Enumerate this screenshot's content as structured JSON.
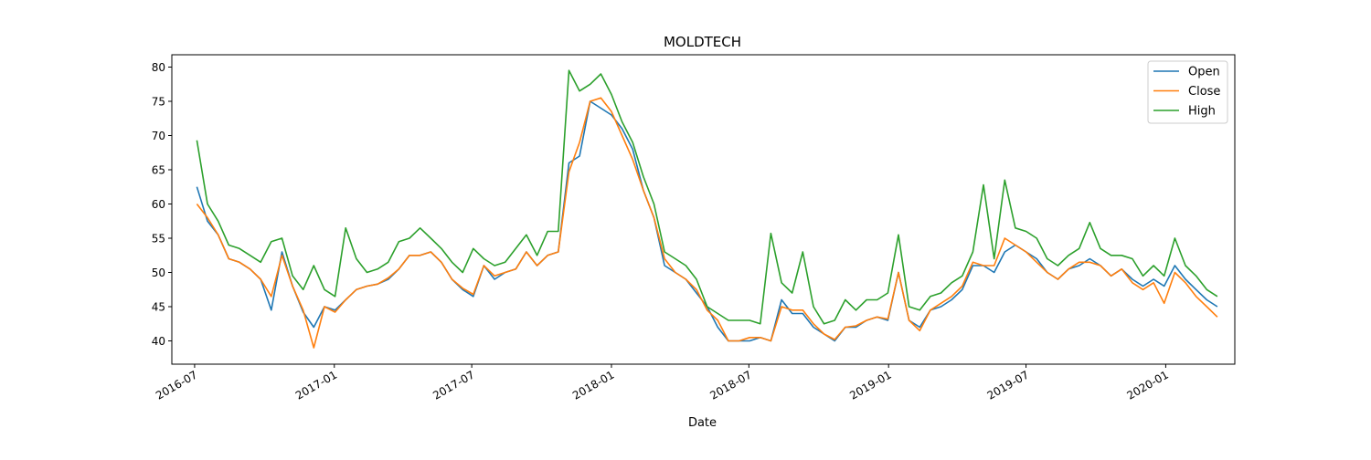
{
  "chart_data": {
    "type": "line",
    "title": "MOLDTECH",
    "xlabel": "Date",
    "ylabel": "",
    "xlim": [
      "2016-06-01",
      "2020-04-01"
    ],
    "ylim": [
      36.6,
      81.8
    ],
    "x_ticks": [
      {
        "date": "2016-07-01",
        "label": "2016-07"
      },
      {
        "date": "2017-01-01",
        "label": "2017-01"
      },
      {
        "date": "2017-07-01",
        "label": "2017-07"
      },
      {
        "date": "2018-01-01",
        "label": "2018-01"
      },
      {
        "date": "2018-07-01",
        "label": "2018-07"
      },
      {
        "date": "2019-01-01",
        "label": "2019-01"
      },
      {
        "date": "2019-07-01",
        "label": "2019-07"
      },
      {
        "date": "2020-01-01",
        "label": "2020-01"
      }
    ],
    "y_ticks": [
      40,
      45,
      50,
      55,
      60,
      65,
      70,
      75,
      80
    ],
    "grid": false,
    "legend_position": "top-right",
    "series": [
      {
        "name": "Open",
        "color": "#1f77b4"
      },
      {
        "name": "Close",
        "color": "#ff7f0e"
      },
      {
        "name": "High",
        "color": "#2ca02c"
      }
    ],
    "x": [
      "2016-07-04",
      "2016-07-18",
      "2016-08-01",
      "2016-08-15",
      "2016-08-29",
      "2016-09-12",
      "2016-09-26",
      "2016-10-10",
      "2016-10-24",
      "2016-11-07",
      "2016-11-21",
      "2016-12-05",
      "2016-12-19",
      "2017-01-02",
      "2017-01-16",
      "2017-01-30",
      "2017-02-13",
      "2017-02-27",
      "2017-03-13",
      "2017-03-27",
      "2017-04-10",
      "2017-04-24",
      "2017-05-08",
      "2017-05-22",
      "2017-06-05",
      "2017-06-19",
      "2017-07-03",
      "2017-07-17",
      "2017-07-31",
      "2017-08-14",
      "2017-08-28",
      "2017-09-11",
      "2017-09-25",
      "2017-10-09",
      "2017-10-23",
      "2017-11-06",
      "2017-11-20",
      "2017-12-04",
      "2017-12-18",
      "2018-01-01",
      "2018-01-15",
      "2018-01-29",
      "2018-02-12",
      "2018-02-26",
      "2018-03-12",
      "2018-03-26",
      "2018-04-09",
      "2018-04-23",
      "2018-05-07",
      "2018-05-21",
      "2018-06-04",
      "2018-06-18",
      "2018-07-02",
      "2018-07-16",
      "2018-07-30",
      "2018-08-13",
      "2018-08-27",
      "2018-09-10",
      "2018-09-24",
      "2018-10-08",
      "2018-10-22",
      "2018-11-05",
      "2018-11-19",
      "2018-12-03",
      "2018-12-17",
      "2018-12-31",
      "2019-01-14",
      "2019-01-28",
      "2019-02-11",
      "2019-02-25",
      "2019-03-11",
      "2019-03-25",
      "2019-04-08",
      "2019-04-22",
      "2019-05-06",
      "2019-05-20",
      "2019-06-03",
      "2019-06-17",
      "2019-07-01",
      "2019-07-15",
      "2019-07-29",
      "2019-08-12",
      "2019-08-26",
      "2019-09-09",
      "2019-09-23",
      "2019-10-07",
      "2019-10-21",
      "2019-11-04",
      "2019-11-18",
      "2019-12-02",
      "2019-12-16",
      "2019-12-30",
      "2020-01-13",
      "2020-01-27",
      "2020-02-10",
      "2020-02-24",
      "2020-03-09"
    ],
    "values": {
      "Open": [
        62.5,
        57.5,
        55.5,
        52,
        51.5,
        50.5,
        49,
        44.5,
        53,
        48,
        44.2,
        42,
        45,
        44.5,
        46,
        47.5,
        48,
        48.3,
        49,
        50.5,
        52.5,
        52.5,
        53,
        51.5,
        49,
        47.5,
        46.5,
        51,
        49,
        50,
        50.5,
        53,
        51,
        52.5,
        53,
        66,
        67,
        75,
        74,
        73,
        71,
        68,
        62,
        58,
        51,
        50,
        49,
        47,
        45,
        42,
        40,
        40,
        40,
        40.5,
        40,
        46,
        44,
        44,
        42,
        41,
        40,
        42,
        42,
        43,
        43.5,
        43,
        50,
        43,
        42,
        44.5,
        45,
        46,
        47.5,
        51,
        51,
        50,
        53,
        54,
        53,
        52,
        50,
        49,
        50.5,
        51,
        52,
        51,
        49.5,
        50.5,
        49,
        48,
        49,
        48,
        51,
        49,
        47.5,
        46,
        45
      ],
      "Close": [
        60,
        58,
        55.5,
        52,
        51.5,
        50.5,
        49,
        46.5,
        52.5,
        48,
        44.5,
        39,
        45,
        44.2,
        46,
        47.5,
        48,
        48.3,
        49.2,
        50.5,
        52.5,
        52.5,
        53,
        51.5,
        49,
        47.7,
        46.8,
        51,
        49.5,
        50,
        50.5,
        53,
        51,
        52.5,
        53,
        64.7,
        69,
        75,
        75.5,
        73.5,
        70,
        66.5,
        62,
        58,
        52,
        50,
        49,
        47.5,
        44.5,
        43,
        40,
        40,
        40.5,
        40.5,
        40,
        45,
        44.5,
        44.5,
        42.5,
        41,
        40.2,
        42,
        42.2,
        43,
        43.5,
        43.2,
        50,
        43,
        41.5,
        44.5,
        45.5,
        46.5,
        48,
        51.5,
        51,
        51,
        55,
        54,
        53,
        51.5,
        50,
        49,
        50.5,
        51.5,
        51.5,
        51,
        49.5,
        50.5,
        48.5,
        47.5,
        48.5,
        45.5,
        50,
        48.5,
        46.5,
        45,
        43.5
      ],
      "High": [
        69.3,
        60,
        57.5,
        54,
        53.5,
        52.5,
        51.5,
        54.5,
        55,
        49.5,
        47.5,
        51,
        47.5,
        46.5,
        56.5,
        52,
        50,
        50.5,
        51.5,
        54.5,
        55,
        56.5,
        55,
        53.5,
        51.5,
        50,
        53.5,
        52,
        51,
        51.5,
        53.5,
        55.5,
        52.5,
        56,
        56,
        79.5,
        76.5,
        77.5,
        79,
        76,
        72,
        69,
        64,
        60,
        53,
        52,
        51,
        49,
        45,
        44,
        43,
        43,
        43,
        42.5,
        55.7,
        48.5,
        47,
        53,
        45,
        42.5,
        43,
        46,
        44.5,
        46,
        46,
        47,
        55.5,
        45,
        44.5,
        46.5,
        47,
        48.5,
        49.5,
        53,
        62.8,
        52,
        63.5,
        56.5,
        56,
        55,
        52,
        51,
        52.5,
        53.5,
        57.3,
        53.5,
        52.5,
        52.5,
        52,
        49.5,
        51,
        49.5,
        55,
        51,
        49.5,
        47.5,
        46.5
      ]
    }
  }
}
